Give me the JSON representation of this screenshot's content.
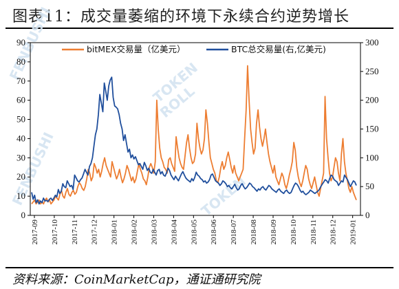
{
  "title": "图表11：成交量萎缩的环境下永续合约逆势增长",
  "source": "资料来源：CoinMarketCap，通证通研究院",
  "watermark": {
    "brand": "FENBUSHI",
    "token": "TOKEN",
    "roll": "ROLL"
  },
  "colors": {
    "bitmex": "#ED7D31",
    "btc": "#1F4E9C"
  },
  "chart_data": {
    "type": "line",
    "legend_placement": "top",
    "x_labels": [
      "2017-09",
      "2017-10",
      "2017-11",
      "2017-12",
      "2018-01",
      "2018-02",
      "2018-03",
      "2018-04",
      "2018-05",
      "2018-06",
      "2018-07",
      "2018-08",
      "2018-09",
      "2018-10",
      "2018-11",
      "2018-12",
      "2019-01"
    ],
    "left_axis": {
      "min": 0,
      "max": 90,
      "ticks": [
        0,
        10,
        20,
        30,
        40,
        50,
        60,
        70,
        80,
        90
      ]
    },
    "right_axis": {
      "min": 0,
      "max": 300,
      "ticks": [
        0,
        50,
        100,
        150,
        200,
        250,
        300
      ]
    },
    "series": [
      {
        "name": "bitMEX交易量（亿美元）",
        "axis": "left",
        "values": [
          6,
          7,
          8,
          6,
          7,
          8,
          6,
          7,
          6,
          8,
          9,
          7,
          8,
          6,
          7,
          8,
          10,
          9,
          8,
          11,
          13,
          10,
          9,
          12,
          14,
          11,
          10,
          12,
          13,
          11,
          12,
          15,
          17,
          16,
          14,
          13,
          15,
          19,
          24,
          22,
          18,
          20,
          27,
          25,
          22,
          24,
          20,
          23,
          27,
          30,
          26,
          24,
          22,
          20,
          28,
          25,
          22,
          19,
          21,
          24,
          20,
          17,
          19,
          22,
          26,
          24,
          21,
          18,
          20,
          17,
          19,
          23,
          27,
          24,
          22,
          19,
          18,
          16,
          20,
          25,
          27,
          25,
          22,
          28,
          60,
          45,
          35,
          30,
          28,
          25,
          24,
          22,
          29,
          30,
          27,
          25,
          23,
          41,
          35,
          30,
          27,
          25,
          24,
          31,
          38,
          42,
          35,
          30,
          27,
          28,
          32,
          48,
          40,
          35,
          32,
          34,
          40,
          55,
          48,
          38,
          30,
          27,
          24,
          22,
          18,
          17,
          20,
          25,
          28,
          24,
          26,
          30,
          33,
          29,
          25,
          22,
          26,
          22,
          20,
          18,
          20,
          22,
          24,
          40,
          55,
          78,
          60,
          45,
          38,
          32,
          35,
          48,
          55,
          46,
          40,
          36,
          40,
          45,
          38,
          32,
          28,
          25,
          22,
          26,
          20,
          18,
          16,
          19,
          22,
          20,
          16,
          14,
          17,
          21,
          24,
          28,
          38,
          34,
          25,
          20,
          17,
          15,
          18,
          22,
          26,
          24,
          19,
          16,
          14,
          17,
          20,
          16,
          12,
          10,
          14,
          18,
          22,
          62,
          40,
          30,
          22,
          18,
          20,
          25,
          30,
          28,
          22,
          18,
          32,
          40,
          28,
          22,
          18,
          14,
          12,
          15,
          12,
          10,
          8
        ]
      },
      {
        "name": "BTC总交易量(右,亿美元)",
        "axis": "right",
        "values": [
          40,
          28,
          35,
          22,
          27,
          20,
          25,
          22,
          30,
          25,
          26,
          24,
          28,
          30,
          26,
          30,
          35,
          32,
          45,
          38,
          42,
          55,
          50,
          48,
          60,
          55,
          50,
          52,
          45,
          70,
          65,
          60,
          58,
          62,
          65,
          72,
          80,
          75,
          70,
          85,
          90,
          100,
          120,
          140,
          150,
          175,
          210,
          195,
          180,
          230,
          215,
          200,
          225,
          235,
          240,
          205,
          190,
          188,
          185,
          175,
          160,
          150,
          130,
          140,
          125,
          110,
          115,
          100,
          105,
          98,
          102,
          95,
          88,
          90,
          85,
          80,
          92,
          86,
          78,
          82,
          75,
          73,
          80,
          75,
          70,
          78,
          80,
          72,
          76,
          70,
          68,
          74,
          82,
          78,
          70,
          66,
          62,
          68,
          64,
          60,
          66,
          72,
          76,
          70,
          65,
          62,
          60,
          58,
          64,
          60,
          66,
          75,
          70,
          68,
          64,
          62,
          58,
          60,
          56,
          58,
          62,
          70,
          72,
          66,
          60,
          58,
          56,
          52,
          55,
          60,
          58,
          55,
          50,
          52,
          48,
          46,
          50,
          54,
          48,
          44,
          46,
          52,
          55,
          50,
          46,
          48,
          52,
          56,
          54,
          50,
          48,
          45,
          42,
          46,
          44,
          48,
          50,
          46,
          44,
          48,
          52,
          50,
          46,
          44,
          42,
          40,
          44,
          46,
          42,
          40,
          38,
          42,
          44,
          40,
          38,
          40,
          46,
          52,
          56,
          54,
          50,
          44,
          40,
          42,
          38,
          36,
          38,
          40,
          44,
          42,
          40,
          38,
          40,
          42,
          45,
          50,
          54,
          58,
          62,
          60,
          56,
          64,
          70,
          68,
          62,
          60,
          58,
          52,
          56,
          60,
          58,
          70,
          66,
          62,
          56,
          50,
          55,
          60,
          58,
          52
        ]
      }
    ]
  }
}
